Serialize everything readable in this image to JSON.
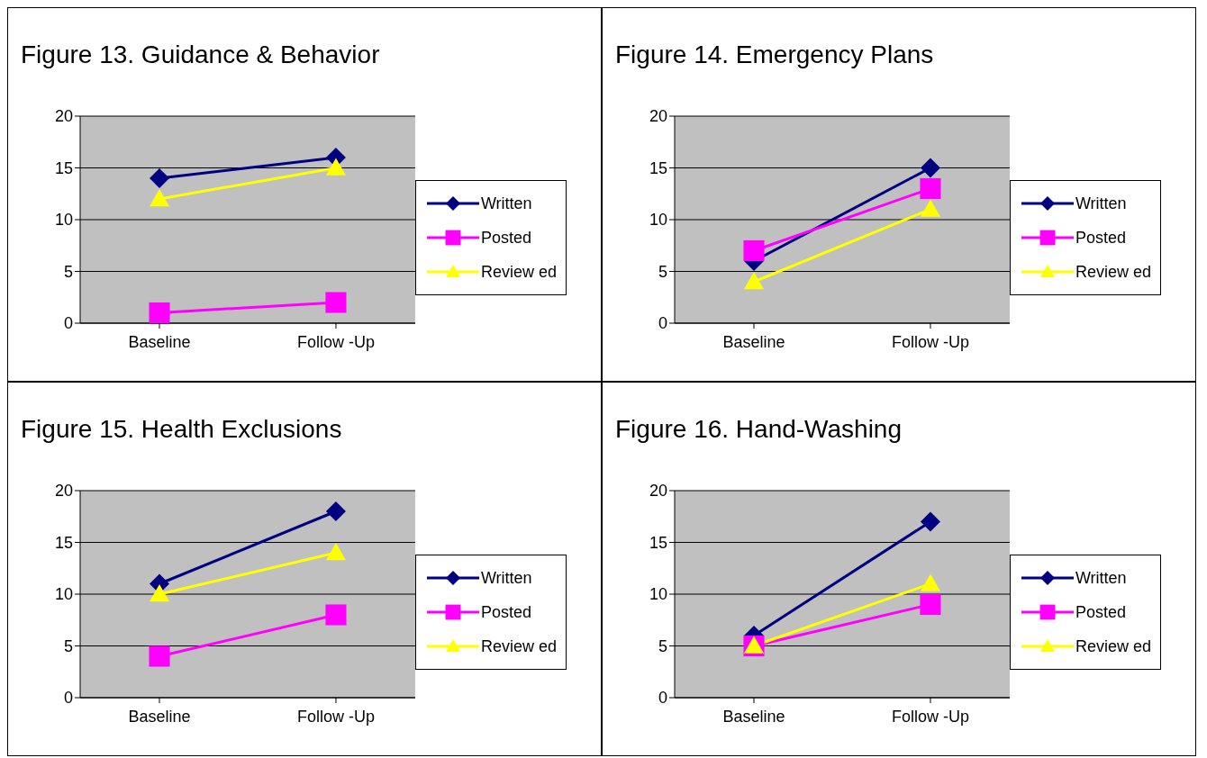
{
  "chart_data": [
    {
      "type": "line",
      "title": "Figure 13. Guidance & Behavior",
      "categories": [
        "Baseline",
        "Follow -Up"
      ],
      "ylim": [
        0,
        20
      ],
      "yticks": [
        0,
        5,
        10,
        15,
        20
      ],
      "grid": "y",
      "legend": "right",
      "series": [
        {
          "name": "Written",
          "color": "#000080",
          "marker": "diamond",
          "values": [
            14,
            16
          ]
        },
        {
          "name": "Posted",
          "color": "#ff00ff",
          "marker": "square",
          "values": [
            1,
            2
          ]
        },
        {
          "name": "Review ed",
          "color": "#ffff00",
          "marker": "triangle",
          "values": [
            12,
            15
          ]
        }
      ]
    },
    {
      "type": "line",
      "title": "Figure 14. Emergency Plans",
      "categories": [
        "Baseline",
        "Follow -Up"
      ],
      "ylim": [
        0,
        20
      ],
      "yticks": [
        0,
        5,
        10,
        15,
        20
      ],
      "grid": "y",
      "legend": "right",
      "series": [
        {
          "name": "Written",
          "color": "#000080",
          "marker": "diamond",
          "values": [
            6,
            15
          ]
        },
        {
          "name": "Posted",
          "color": "#ff00ff",
          "marker": "square",
          "values": [
            7,
            13
          ]
        },
        {
          "name": "Review ed",
          "color": "#ffff00",
          "marker": "triangle",
          "values": [
            4,
            11
          ]
        }
      ]
    },
    {
      "type": "line",
      "title": "Figure 15. Health Exclusions",
      "categories": [
        "Baseline",
        "Follow -Up"
      ],
      "ylim": [
        0,
        20
      ],
      "yticks": [
        0,
        5,
        10,
        15,
        20
      ],
      "grid": "y",
      "legend": "right",
      "series": [
        {
          "name": "Written",
          "color": "#000080",
          "marker": "diamond",
          "values": [
            11,
            18
          ]
        },
        {
          "name": "Posted",
          "color": "#ff00ff",
          "marker": "square",
          "values": [
            4,
            8
          ]
        },
        {
          "name": "Review ed",
          "color": "#ffff00",
          "marker": "triangle",
          "values": [
            10,
            14
          ]
        }
      ]
    },
    {
      "type": "line",
      "title": "Figure 16. Hand-Washing",
      "categories": [
        "Baseline",
        "Follow -Up"
      ],
      "ylim": [
        0,
        20
      ],
      "yticks": [
        0,
        5,
        10,
        15,
        20
      ],
      "grid": "y",
      "legend": "right",
      "series": [
        {
          "name": "Written",
          "color": "#000080",
          "marker": "diamond",
          "values": [
            6,
            17
          ]
        },
        {
          "name": "Posted",
          "color": "#ff00ff",
          "marker": "square",
          "values": [
            5,
            9
          ]
        },
        {
          "name": "Review ed",
          "color": "#ffff00",
          "marker": "triangle",
          "values": [
            5,
            11
          ]
        }
      ]
    }
  ]
}
